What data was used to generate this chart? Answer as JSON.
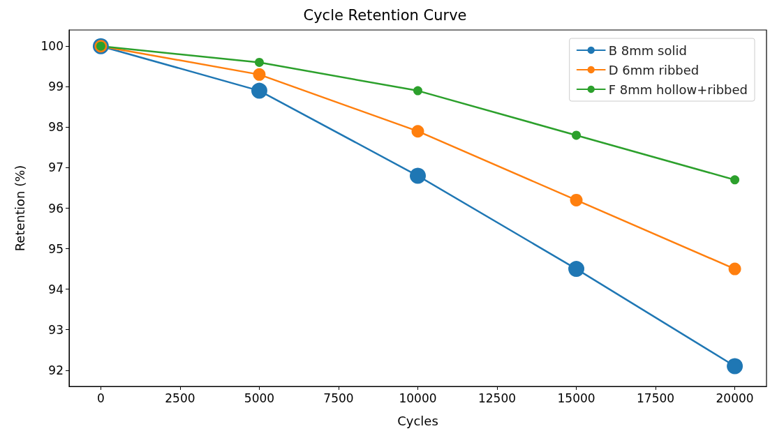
{
  "chart_data": {
    "type": "line",
    "title": "Cycle Retention Curve",
    "xlabel": "Cycles",
    "ylabel": "Retention (%)",
    "x": [
      0,
      5000,
      10000,
      15000,
      20000
    ],
    "series": [
      {
        "name": "B 8mm solid",
        "color": "#1f77b4",
        "values": [
          100,
          98.9,
          96.8,
          94.5,
          92.1
        ]
      },
      {
        "name": "D 6mm ribbed",
        "color": "#ff7f0e",
        "values": [
          100,
          99.3,
          97.9,
          96.2,
          94.5
        ]
      },
      {
        "name": "F 8mm hollow+ribbed",
        "color": "#2ca02c",
        "values": [
          100,
          99.6,
          98.9,
          97.8,
          96.7
        ]
      }
    ],
    "xlim": [
      -1000,
      21000
    ],
    "xticks": [
      0,
      2500,
      5000,
      7500,
      10000,
      12500,
      15000,
      17500,
      20000
    ],
    "ylim": [
      91.6,
      100.4
    ],
    "yticks": [
      92,
      93,
      94,
      95,
      96,
      97,
      98,
      99,
      100
    ],
    "grid": false,
    "legend": "top right",
    "marker": "circle",
    "line_style": "solid"
  }
}
